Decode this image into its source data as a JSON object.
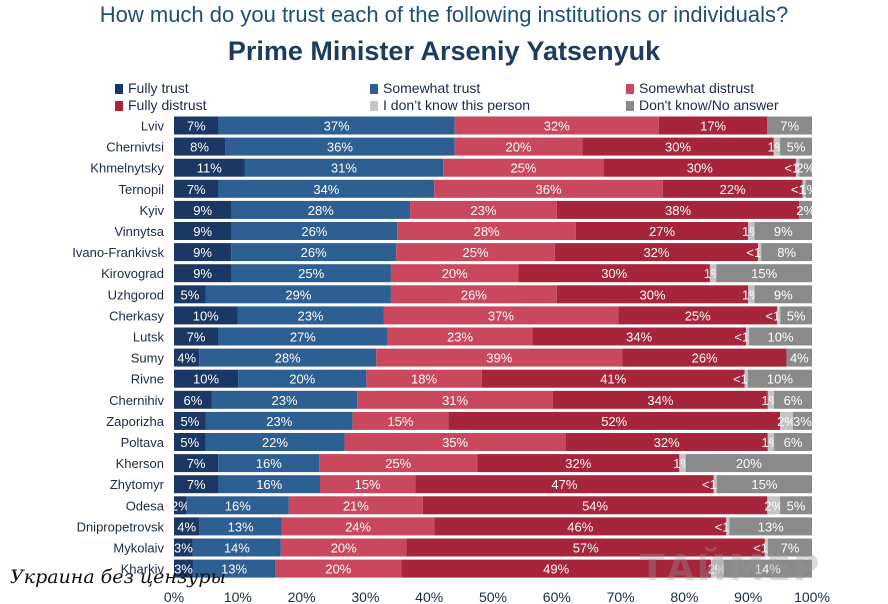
{
  "question": "How much do you trust each of the following institutions or individuals?",
  "title": "Prime Minister Arseniy Yatsenyuk",
  "watermark_left": "Украина без цензуры",
  "watermark_right": "ТАЙМЕР",
  "colors": {
    "fully_trust": "#1b3764",
    "somewhat_trust": "#2e5f92",
    "somewhat_distrust": "#c9485e",
    "fully_distrust": "#a7253b",
    "dont_know_person": "#c4c4c4",
    "dont_know_answer": "#8a8a8a"
  },
  "chart_data": {
    "type": "bar",
    "orientation": "horizontal",
    "stacked": true,
    "title": "Prime Minister Arseniy Yatsenyuk",
    "xlim": [
      0,
      100
    ],
    "x_ticks": [
      "0%",
      "10%",
      "20%",
      "30%",
      "40%",
      "50%",
      "60%",
      "70%",
      "80%",
      "90%",
      "100%"
    ],
    "legend": [
      {
        "key": "fully_trust",
        "label": "Fully trust"
      },
      {
        "key": "somewhat_trust",
        "label": "Somewhat trust"
      },
      {
        "key": "somewhat_distrust",
        "label": "Somewhat distrust"
      },
      {
        "key": "fully_distrust",
        "label": "Fully distrust"
      },
      {
        "key": "dont_know_person",
        "label": "I don’t know this person"
      },
      {
        "key": "dont_know_answer",
        "label": "Don't know/No answer"
      }
    ],
    "categories": [
      "Lviv",
      "Chernivtsi",
      "Khmelnytsky",
      "Ternopil",
      "Kyiv",
      "Vinnytsa",
      "Ivano-Frankivsk",
      "Kirovograd",
      "Uzhgorod",
      "Cherkasy",
      "Lutsk",
      "Sumy",
      "Rivne",
      "Chernihiv",
      "Zaporizha",
      "Poltava",
      "Kherson",
      "Zhytomyr",
      "Odesa",
      "Dnipropetrovsk",
      "Mykolaiv",
      "Kharkiv"
    ],
    "rows": [
      {
        "values": [
          7,
          37,
          32,
          17,
          0,
          7
        ],
        "labels": [
          "7%",
          "37%",
          "32%",
          "17%",
          "",
          "7%"
        ]
      },
      {
        "values": [
          8,
          36,
          20,
          30,
          1,
          5
        ],
        "labels": [
          "8%",
          "36%",
          "20%",
          "30%",
          "1%",
          "5%"
        ]
      },
      {
        "values": [
          11,
          31,
          25,
          30,
          0.5,
          2
        ],
        "labels": [
          "11%",
          "31%",
          "25%",
          "30%",
          "<1%",
          "2%"
        ]
      },
      {
        "values": [
          7,
          34,
          36,
          22,
          0.5,
          1
        ],
        "labels": [
          "7%",
          "34%",
          "36%",
          "22%",
          "<1%",
          "1%"
        ]
      },
      {
        "values": [
          9,
          28,
          23,
          38,
          0,
          2
        ],
        "labels": [
          "9%",
          "28%",
          "23%",
          "38%",
          "",
          "2%"
        ]
      },
      {
        "values": [
          9,
          26,
          28,
          27,
          1,
          9
        ],
        "labels": [
          "9%",
          "26%",
          "28%",
          "27%",
          "1%",
          "9%"
        ]
      },
      {
        "values": [
          9,
          26,
          25,
          32,
          0.5,
          8
        ],
        "labels": [
          "9%",
          "26%",
          "25%",
          "32%",
          "<1%",
          "8%"
        ]
      },
      {
        "values": [
          9,
          25,
          20,
          30,
          1,
          15
        ],
        "labels": [
          "9%",
          "25%",
          "20%",
          "30%",
          "1%",
          "15%"
        ]
      },
      {
        "values": [
          5,
          29,
          26,
          30,
          1,
          9
        ],
        "labels": [
          "5%",
          "29%",
          "26%",
          "30%",
          "1%",
          "9%"
        ]
      },
      {
        "values": [
          10,
          23,
          37,
          25,
          0.5,
          5
        ],
        "labels": [
          "10%",
          "23%",
          "37%",
          "25%",
          "<1%",
          "5%"
        ]
      },
      {
        "values": [
          7,
          27,
          23,
          34,
          0.5,
          10
        ],
        "labels": [
          "7%",
          "27%",
          "23%",
          "34%",
          "<1%",
          "10%"
        ]
      },
      {
        "values": [
          4,
          28,
          39,
          26,
          0,
          4
        ],
        "labels": [
          "4%",
          "28%",
          "39%",
          "26%",
          "",
          "4%"
        ]
      },
      {
        "values": [
          10,
          20,
          18,
          41,
          0.5,
          10
        ],
        "labels": [
          "10%",
          "20%",
          "18%",
          "41%",
          "<1%",
          "10%"
        ]
      },
      {
        "values": [
          6,
          23,
          31,
          34,
          1,
          6
        ],
        "labels": [
          "6%",
          "23%",
          "31%",
          "34%",
          "1%",
          "6%"
        ]
      },
      {
        "values": [
          5,
          23,
          15,
          52,
          2,
          3
        ],
        "labels": [
          "5%",
          "23%",
          "15%",
          "52%",
          "2%",
          "3%"
        ]
      },
      {
        "values": [
          5,
          22,
          35,
          32,
          1,
          6
        ],
        "labels": [
          "5%",
          "22%",
          "35%",
          "32%",
          "1%",
          "6%"
        ]
      },
      {
        "values": [
          7,
          16,
          25,
          32,
          1,
          20
        ],
        "labels": [
          "7%",
          "16%",
          "25%",
          "32%",
          "1%",
          "20%"
        ]
      },
      {
        "values": [
          7,
          16,
          15,
          47,
          0.5,
          15
        ],
        "labels": [
          "7%",
          "16%",
          "15%",
          "47%",
          "<1%",
          "15%"
        ]
      },
      {
        "values": [
          2,
          16,
          21,
          54,
          2,
          5
        ],
        "labels": [
          "2%",
          "16%",
          "21%",
          "54%",
          "2%",
          "5%"
        ]
      },
      {
        "values": [
          4,
          13,
          24,
          46,
          0.5,
          13
        ],
        "labels": [
          "4%",
          "13%",
          "24%",
          "46%",
          "<1%",
          "13%"
        ]
      },
      {
        "values": [
          3,
          14,
          20,
          57,
          0.5,
          7
        ],
        "labels": [
          "3%",
          "14%",
          "20%",
          "57%",
          "<1%",
          "7%"
        ]
      },
      {
        "values": [
          3,
          13,
          20,
          49,
          2,
          14
        ],
        "labels": [
          "3%",
          "13%",
          "20%",
          "49%",
          "2%",
          "14%"
        ]
      }
    ]
  }
}
